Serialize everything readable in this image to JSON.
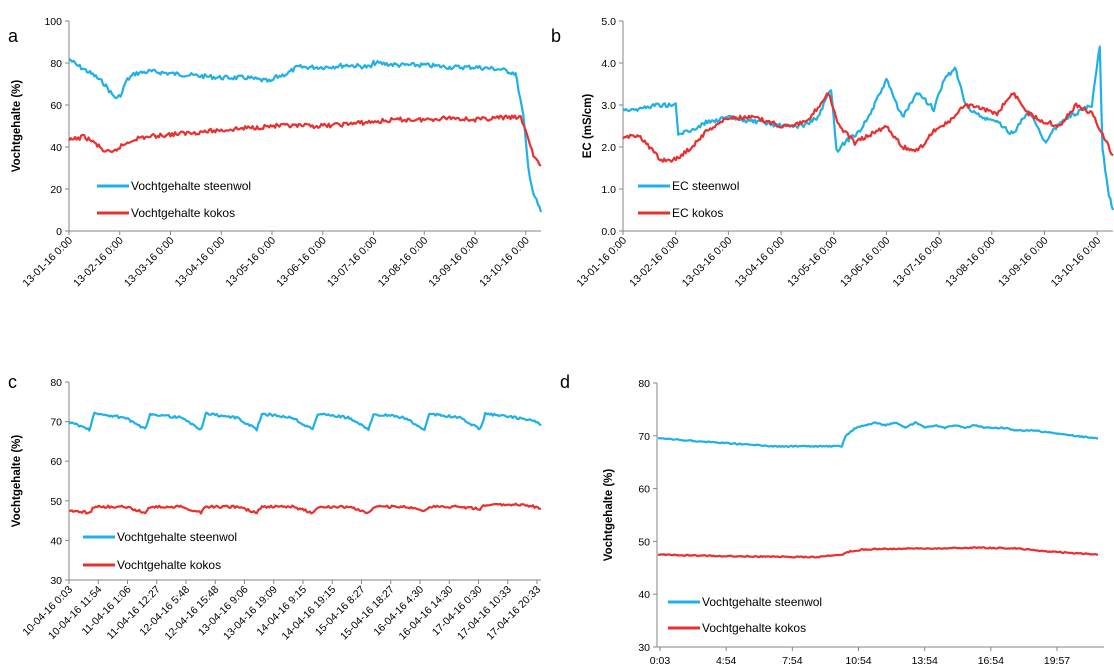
{
  "colors": {
    "steenwol": "#1fb0e6",
    "kokos": "#e8312f"
  },
  "chart_data": [
    {
      "panel": "a",
      "type": "line",
      "title": "",
      "xlabel": "",
      "ylabel": "Vochtgehalte (%)",
      "ylim": [
        0,
        100
      ],
      "yticks": [
        "0",
        "20",
        "40",
        "60",
        "80",
        "100"
      ],
      "xticks": [
        "13-01-16 0:00",
        "13-02-16 0:00",
        "13-03-16 0:00",
        "13-04-16 0:00",
        "13-05-16 0:00",
        "13-06-16 0:00",
        "13-07-16 0:00",
        "13-08-16 0:00",
        "13-09-16 0:00",
        "13-10-16 0:00"
      ],
      "x_unit": "months since 13-01-16",
      "xlim": [
        0,
        9.3
      ],
      "grid": false,
      "legend_position": "bottom-left",
      "series": [
        {
          "name": "Vochtgehalte steenwol",
          "color": "#1fb0e6",
          "x": [
            0,
            0.15,
            0.3,
            0.5,
            0.7,
            0.85,
            0.95,
            1.05,
            1.1,
            1.15,
            1.3,
            1.6,
            2.0,
            2.5,
            3.0,
            3.5,
            4.0,
            4.05,
            4.3,
            4.5,
            5.0,
            5.5,
            5.95,
            6.0,
            6.05,
            6.5,
            7.0,
            7.5,
            8.0,
            8.5,
            8.8,
            8.95,
            9.05,
            9.15,
            9.3
          ],
          "y": [
            82,
            79,
            77,
            74,
            70,
            65,
            63,
            66,
            70,
            72,
            75,
            76,
            75,
            74,
            73,
            73,
            71,
            73,
            75,
            78,
            78,
            79,
            78,
            80,
            80,
            79,
            79,
            78,
            78,
            77,
            75,
            55,
            30,
            18,
            9
          ]
        },
        {
          "name": "Vochtgehalte kokos",
          "color": "#e8312f",
          "x": [
            0,
            0.3,
            0.5,
            0.7,
            0.85,
            1.0,
            1.3,
            1.6,
            2.0,
            2.5,
            3.0,
            3.5,
            4.0,
            4.5,
            5.0,
            5.5,
            6.0,
            6.5,
            7.0,
            7.5,
            8.0,
            8.5,
            8.9,
            9.0,
            9.15,
            9.3
          ],
          "y": [
            43,
            45,
            42,
            38,
            37,
            40,
            44,
            45,
            46,
            47,
            48,
            49,
            50,
            50,
            50,
            51,
            52,
            53,
            53,
            54,
            53,
            54,
            54,
            48,
            36,
            31
          ]
        }
      ]
    },
    {
      "panel": "b",
      "type": "line",
      "title": "",
      "xlabel": "",
      "ylabel": "EC (mS/cm)",
      "ylim": [
        0,
        5
      ],
      "yticks": [
        "0.0",
        "1.0",
        "2.0",
        "3.0",
        "4.0",
        "5.0"
      ],
      "xticks": [
        "13-01-16 0:00",
        "13-02-16 0:00",
        "13-03-16 0:00",
        "13-04-16 0:00",
        "13-05-16 0:00",
        "13-06-16 0:00",
        "13-07-16 0:00",
        "13-08-16 0:00",
        "13-09-16 0:00",
        "13-10-16 0:00"
      ],
      "x_unit": "months since 13-01-16",
      "xlim": [
        0,
        9.3
      ],
      "grid": false,
      "legend_position": "bottom-left",
      "series": [
        {
          "name": "EC steenwol",
          "color": "#1fb0e6",
          "x": [
            0,
            0.3,
            0.6,
            0.9,
            1.0,
            1.05,
            1.3,
            1.6,
            2.0,
            2.5,
            3.0,
            3.4,
            3.7,
            3.95,
            4.05,
            4.2,
            4.5,
            4.7,
            5.0,
            5.3,
            5.6,
            5.9,
            6.1,
            6.3,
            6.5,
            6.8,
            7.1,
            7.4,
            7.7,
            8.0,
            8.3,
            8.6,
            8.9,
            9.05,
            9.1,
            9.2,
            9.3
          ],
          "y": [
            2.9,
            2.9,
            3.0,
            3.0,
            3.0,
            2.3,
            2.4,
            2.6,
            2.7,
            2.6,
            2.5,
            2.5,
            2.7,
            3.4,
            1.9,
            2.1,
            2.4,
            2.8,
            3.6,
            2.7,
            3.3,
            2.9,
            3.6,
            3.9,
            3.0,
            2.7,
            2.6,
            2.3,
            2.9,
            2.1,
            2.6,
            2.8,
            3.0,
            4.4,
            2.0,
            1.0,
            0.5
          ]
        },
        {
          "name": "EC kokos",
          "color": "#e8312f",
          "x": [
            0,
            0.3,
            0.5,
            0.7,
            1.0,
            1.3,
            1.6,
            2.0,
            2.5,
            3.0,
            3.5,
            3.9,
            4.1,
            4.4,
            4.7,
            5.0,
            5.3,
            5.6,
            5.9,
            6.2,
            6.5,
            6.8,
            7.1,
            7.4,
            7.7,
            8.0,
            8.3,
            8.6,
            8.9,
            9.1,
            9.3
          ],
          "y": [
            2.2,
            2.3,
            2.0,
            1.7,
            1.7,
            2.0,
            2.4,
            2.7,
            2.7,
            2.5,
            2.6,
            3.3,
            2.5,
            2.1,
            2.3,
            2.5,
            2.0,
            1.9,
            2.4,
            2.6,
            3.0,
            2.9,
            2.8,
            3.3,
            2.8,
            2.6,
            2.5,
            3.0,
            2.8,
            2.3,
            1.8
          ]
        }
      ]
    },
    {
      "panel": "c",
      "type": "line",
      "title": "",
      "xlabel": "",
      "ylabel": "Vochtgehalte (%)",
      "ylim": [
        30,
        80
      ],
      "yticks": [
        "30",
        "40",
        "50",
        "60",
        "70",
        "80"
      ],
      "xticks": [
        "10-04-16 0:03",
        "10-04-16 11:54",
        "11-04-16 1:06",
        "11-04-16 12:27",
        "12-04-16 5:48",
        "12-04-16 15:48",
        "13-04-16 9:06",
        "13-04-16 19:09",
        "14-04-16 9:15",
        "14-04-16 19:15",
        "15-04-16 8:27",
        "15-04-16 18:27",
        "16-04-16 4:30",
        "16-04-16 14:30",
        "17-04-16 0:30",
        "17-04-16 10:33",
        "17-04-16 20:33"
      ],
      "x_unit": "hours since 10-04-16 0:00",
      "xlim": [
        0,
        186
      ],
      "grid": false,
      "legend_position": "bottom-left",
      "series": [
        {
          "name": "Vochtgehalte steenwol",
          "color": "#1fb0e6",
          "x": [
            0,
            8,
            10,
            22,
            30,
            32,
            44,
            52,
            54,
            66,
            74,
            76,
            88,
            96,
            98,
            110,
            118,
            120,
            132,
            140,
            142,
            154,
            162,
            164,
            176,
            184,
            186
          ],
          "y": [
            70,
            68,
            72,
            71,
            68,
            72,
            71,
            68,
            72,
            71,
            68,
            72,
            71,
            68,
            72,
            71,
            68,
            72,
            71,
            68,
            72,
            71,
            68,
            72,
            71,
            70,
            69
          ]
        },
        {
          "name": "Vochtgehalte kokos",
          "color": "#e8312f",
          "x": [
            0,
            8,
            10,
            22,
            30,
            32,
            44,
            52,
            54,
            66,
            74,
            76,
            88,
            96,
            98,
            110,
            118,
            120,
            132,
            140,
            142,
            154,
            162,
            164,
            176,
            184,
            186
          ],
          "y": [
            47.5,
            47,
            48.5,
            48.5,
            47,
            48.5,
            48.5,
            47,
            48.5,
            48.5,
            47,
            48.5,
            48.5,
            47,
            48.5,
            48.5,
            47,
            48.5,
            48.5,
            47.5,
            48.5,
            48.5,
            48,
            49,
            49,
            48.5,
            48
          ]
        }
      ]
    },
    {
      "panel": "d",
      "type": "line",
      "title": "",
      "xlabel": "",
      "ylabel": "Vochtgehalte (%)",
      "ylim": [
        30,
        80
      ],
      "yticks": [
        "30",
        "40",
        "50",
        "60",
        "70",
        "80"
      ],
      "xticks": [
        "0:03",
        "4:54",
        "7:54",
        "10:54",
        "13:54",
        "16:54",
        "19:57"
      ],
      "x_unit": "hours since 0:00",
      "xlim": [
        0,
        22.5
      ],
      "grid": false,
      "legend_position": "bottom-left",
      "series": [
        {
          "name": "Vochtgehalte steenwol",
          "color": "#1fb0e6",
          "x": [
            0.05,
            2,
            4,
            6,
            8,
            9.3,
            9.5,
            10.0,
            10.5,
            11,
            11.5,
            12,
            12.5,
            13,
            13.5,
            14,
            14.5,
            15,
            15.5,
            16,
            16.5,
            17,
            17.5,
            18,
            19,
            20,
            21,
            22.2
          ],
          "y": [
            69.5,
            69,
            68.5,
            68,
            68,
            68,
            70,
            71.5,
            72,
            72.5,
            72,
            72.5,
            71.5,
            72.5,
            71.5,
            72,
            71.5,
            72,
            71.5,
            72,
            71.5,
            71.5,
            71.5,
            71,
            71,
            70.5,
            70,
            69.5
          ]
        },
        {
          "name": "Vochtgehalte kokos",
          "color": "#e8312f",
          "x": [
            0.05,
            2,
            4,
            6,
            8,
            9.3,
            9.8,
            10.5,
            12,
            14,
            16,
            18,
            20,
            22.2
          ],
          "y": [
            47.5,
            47.3,
            47.2,
            47.1,
            47,
            47.5,
            48.2,
            48.5,
            48.6,
            48.7,
            48.8,
            48.7,
            48,
            47.5
          ]
        }
      ]
    }
  ]
}
